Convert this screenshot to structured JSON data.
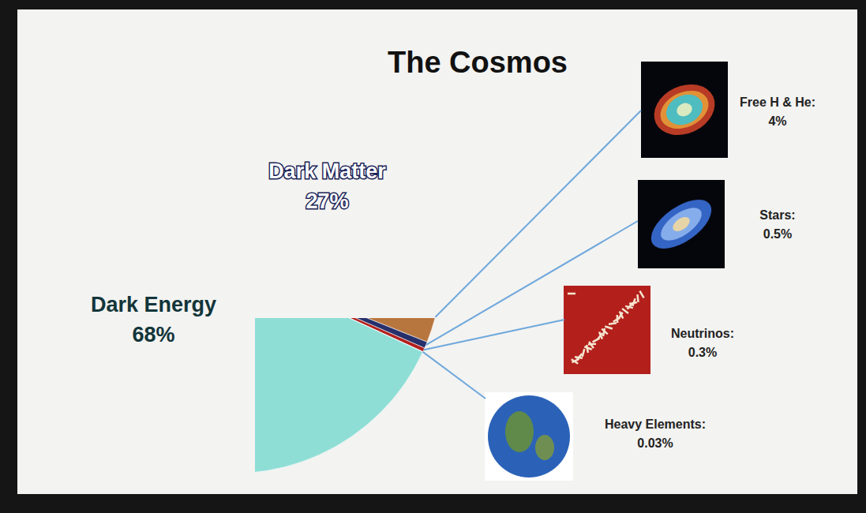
{
  "chart_data": {
    "type": "pie",
    "title": "The Cosmos",
    "categories": [
      "Dark Matter",
      "Free H & He:",
      "Stars:",
      "Neutrinos:",
      "Heavy Elements:",
      "Dark Energy"
    ],
    "values": [
      27,
      4,
      0.5,
      0.3,
      0.03,
      68
    ],
    "value_labels": [
      "27%",
      "4%",
      "0.5%",
      "0.3%",
      "0.03%",
      "68%"
    ],
    "data_labels": true,
    "colors": [
      "#3c4fc2",
      "#b8763f",
      "#27306b",
      "#b3201c",
      "#2a6fd1",
      "#8fded6"
    ]
  }
}
